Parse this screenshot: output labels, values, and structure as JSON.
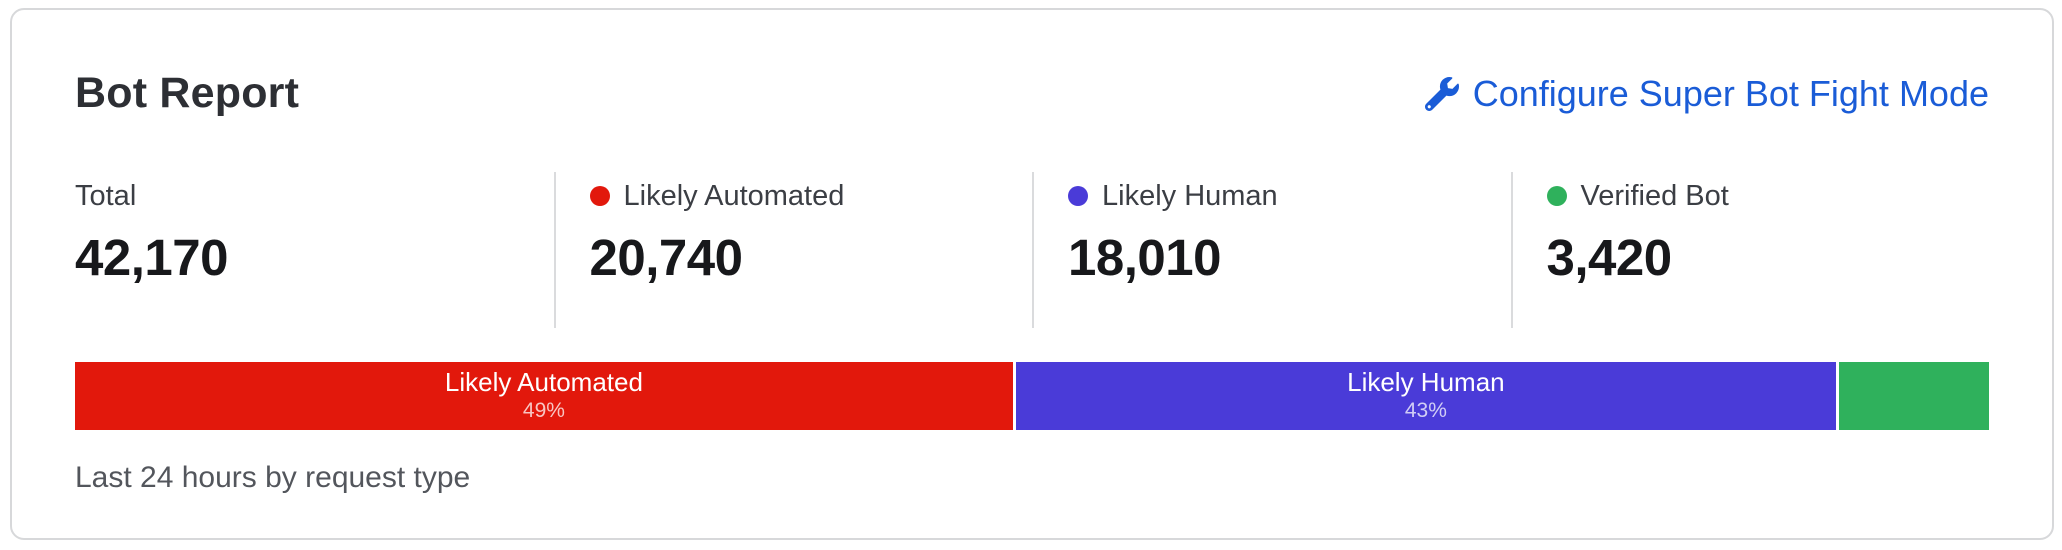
{
  "card": {
    "title": "Bot Report",
    "action": {
      "label": "Configure Super Bot Fight Mode",
      "icon": "wrench-icon",
      "color": "#1a5cd7"
    },
    "stats": [
      {
        "label": "Total",
        "value": "42,170",
        "dot_color": null
      },
      {
        "label": "Likely Automated",
        "value": "20,740",
        "dot_color": "#e2180c"
      },
      {
        "label": "Likely Human",
        "value": "18,010",
        "dot_color": "#4a3bd8"
      },
      {
        "label": "Verified Bot",
        "value": "3,420",
        "dot_color": "#2fb15c"
      }
    ],
    "caption": "Last 24 hours by request type"
  },
  "chart_data": {
    "type": "bar",
    "variant": "stacked-horizontal",
    "title": "Bot Report",
    "caption": "Last 24 hours by request type",
    "total": 42170,
    "series": [
      {
        "name": "Likely Automated",
        "value": 20740,
        "percent": 49,
        "color": "#e2180c",
        "show_label": true
      },
      {
        "name": "Likely Human",
        "value": 18010,
        "percent": 43,
        "color": "#4a3bd8",
        "show_label": true
      },
      {
        "name": "Verified Bot",
        "value": 3420,
        "percent": 8,
        "color": "#2fb15c",
        "show_label": false
      }
    ],
    "legend_position": "top",
    "grid": false
  }
}
